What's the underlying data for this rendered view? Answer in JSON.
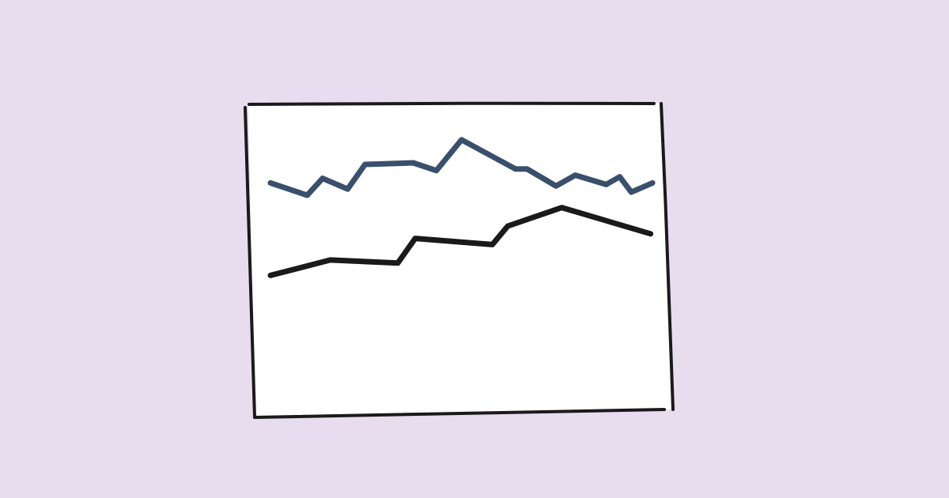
{
  "colors": {
    "background": "#e8dcef",
    "canvas": "#ffffff",
    "frame": "#1a1a1a"
  },
  "chart_data": {
    "type": "line",
    "title": "",
    "xlabel": "",
    "ylabel": "",
    "grid": false,
    "legend": "none",
    "xlim": [
      0,
      100
    ],
    "ylim": [
      0,
      100
    ],
    "series": [
      {
        "color": "#3a4f6b",
        "points": [
          [
            0,
            74
          ],
          [
            9.5,
            70
          ],
          [
            13.5,
            75.5
          ],
          [
            20,
            72
          ],
          [
            24.5,
            80
          ],
          [
            37,
            80.5
          ],
          [
            43,
            78
          ],
          [
            49.5,
            88
          ],
          [
            63.5,
            78.5
          ],
          [
            66.5,
            78.5
          ],
          [
            74,
            73
          ],
          [
            79,
            76.5
          ],
          [
            87,
            73.5
          ],
          [
            90.5,
            76
          ],
          [
            93.5,
            71
          ],
          [
            99,
            74
          ]
        ]
      },
      {
        "color": "#1a1a1a",
        "points": [
          [
            0,
            44
          ],
          [
            15.5,
            49
          ],
          [
            33,
            48
          ],
          [
            37.5,
            56
          ],
          [
            57.5,
            54
          ],
          [
            61.5,
            60
          ],
          [
            75.5,
            66
          ],
          [
            98.5,
            57.5
          ]
        ]
      }
    ]
  }
}
